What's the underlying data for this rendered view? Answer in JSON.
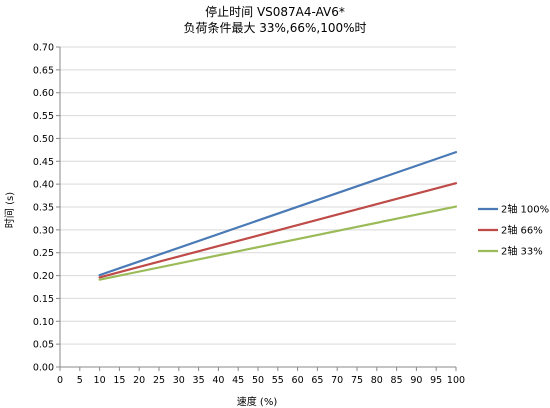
{
  "chart_data": {
    "type": "line",
    "title": "停止时间 VS087A4-AV6*",
    "subtitle": "负荷条件最大 33%,66%,100%时",
    "xlabel": "速度 (%)",
    "ylabel": "时间 (s)",
    "x": [
      10,
      100
    ],
    "xlim": [
      0,
      100
    ],
    "ylim": [
      0,
      0.7
    ],
    "xticks": [
      "0",
      "5",
      "10",
      "15",
      "20",
      "25",
      "30",
      "35",
      "40",
      "45",
      "50",
      "55",
      "60",
      "65",
      "70",
      "75",
      "80",
      "85",
      "90",
      "95",
      "100"
    ],
    "yticks": [
      "0.00",
      "0.05",
      "0.10",
      "0.15",
      "0.20",
      "0.25",
      "0.30",
      "0.35",
      "0.40",
      "0.45",
      "0.50",
      "0.55",
      "0.60",
      "0.65",
      "0.70"
    ],
    "grid": "horizontal",
    "legend_position": "right",
    "series": [
      {
        "name": "2轴 100%",
        "color": "#4a7ab5",
        "values": [
          0.201,
          0.47
        ]
      },
      {
        "name": "2轴 66%",
        "color": "#be4b48",
        "values": [
          0.196,
          0.402
        ]
      },
      {
        "name": "2轴 33%",
        "color": "#9bbb59",
        "values": [
          0.191,
          0.351
        ]
      }
    ]
  }
}
